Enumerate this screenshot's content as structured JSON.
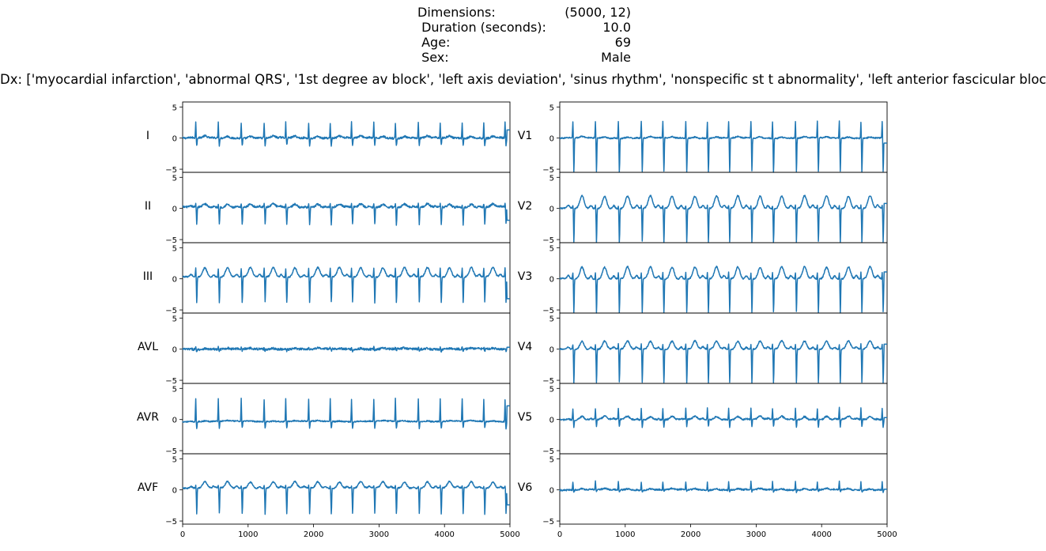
{
  "header": {
    "rows": [
      {
        "label": "Dimensions:",
        "value": "(5000, 12)"
      },
      {
        "label": " Duration (seconds):",
        "value": "10.0"
      },
      {
        "label": " Age:",
        "value": "69"
      },
      {
        "label": " Sex:",
        "value": "Male"
      }
    ],
    "dx": "Dx: ['myocardial infarction', 'abnormal QRS', '1st degree av block', 'left axis deviation', 'sinus rhythm', 'nonspecific st t abnormality', 'left anterior fascicular block']"
  },
  "colors": {
    "trace": "#1f77b4",
    "axes": "#000000"
  },
  "chart_data": {
    "type": "line",
    "layout": "2 columns x 6 rows of stacked subplots sharing axes",
    "samples": 5000,
    "xlim": [
      0,
      5000
    ],
    "ylim": [
      -5.5,
      5.8
    ],
    "xticks": [
      0,
      1000,
      2000,
      3000,
      4000,
      5000
    ],
    "yticks": [
      -5,
      0,
      5
    ],
    "beat_positions": [
      200,
      545,
      895,
      1245,
      1575,
      1925,
      2255,
      2580,
      2920,
      3250,
      3600,
      3935,
      4270,
      4600,
      4925
    ],
    "leads": [
      {
        "name": "I",
        "col": 0,
        "row": 0,
        "r_peak": 2.5,
        "s_depth": -1.2,
        "t_wave": 0.3,
        "baseline": 0.0,
        "noise": 0.15,
        "end_value": 1.3
      },
      {
        "name": "II",
        "col": 0,
        "row": 1,
        "r_peak": 0.5,
        "s_depth": -2.8,
        "t_wave": 0.5,
        "baseline": 0.2,
        "noise": 0.15,
        "end_value": -1.9
      },
      {
        "name": "III",
        "col": 0,
        "row": 2,
        "r_peak": 1.4,
        "s_depth": -4.2,
        "t_wave": 1.5,
        "baseline": 0.3,
        "noise": 0.1,
        "end_value": -3.2
      },
      {
        "name": "AVL",
        "col": 0,
        "row": 3,
        "r_peak": 0.3,
        "s_depth": -0.3,
        "t_wave": 0.15,
        "baseline": 0.0,
        "noise": 0.18,
        "end_value": 0.3
      },
      {
        "name": "AVR",
        "col": 0,
        "row": 4,
        "r_peak": 3.6,
        "s_depth": -1.1,
        "t_wave": 0.1,
        "baseline": -0.3,
        "noise": 0.1,
        "end_value": 2.2
      },
      {
        "name": "AVF",
        "col": 0,
        "row": 5,
        "r_peak": 0.4,
        "s_depth": -4.2,
        "t_wave": 1.0,
        "baseline": 0.3,
        "noise": 0.1,
        "end_value": -2.4
      },
      {
        "name": "V1",
        "col": 1,
        "row": 0,
        "r_peak": 2.7,
        "s_depth": -5.5,
        "t_wave": 0.2,
        "baseline": 0.0,
        "noise": 0.1,
        "end_value": -0.8
      },
      {
        "name": "V2",
        "col": 1,
        "row": 1,
        "r_peak": 0.5,
        "s_depth": -5.5,
        "t_wave": 2.0,
        "baseline": 0.0,
        "noise": 0.1,
        "end_value": 0.8
      },
      {
        "name": "V3",
        "col": 1,
        "row": 2,
        "r_peak": 1.0,
        "s_depth": -5.5,
        "t_wave": 1.9,
        "baseline": 0.0,
        "noise": 0.1,
        "end_value": 1.1
      },
      {
        "name": "V4",
        "col": 1,
        "row": 3,
        "r_peak": 0.8,
        "s_depth": -5.5,
        "t_wave": 1.3,
        "baseline": 0.0,
        "noise": 0.1,
        "end_value": 0.8
      },
      {
        "name": "V5",
        "col": 1,
        "row": 4,
        "r_peak": 1.8,
        "s_depth": -1.2,
        "t_wave": 0.5,
        "baseline": 0.0,
        "noise": 0.12,
        "end_value": 0.3
      },
      {
        "name": "V6",
        "col": 1,
        "row": 5,
        "r_peak": 1.3,
        "s_depth": -0.3,
        "t_wave": 0.2,
        "baseline": 0.0,
        "noise": 0.12,
        "end_value": 0.1
      }
    ]
  }
}
